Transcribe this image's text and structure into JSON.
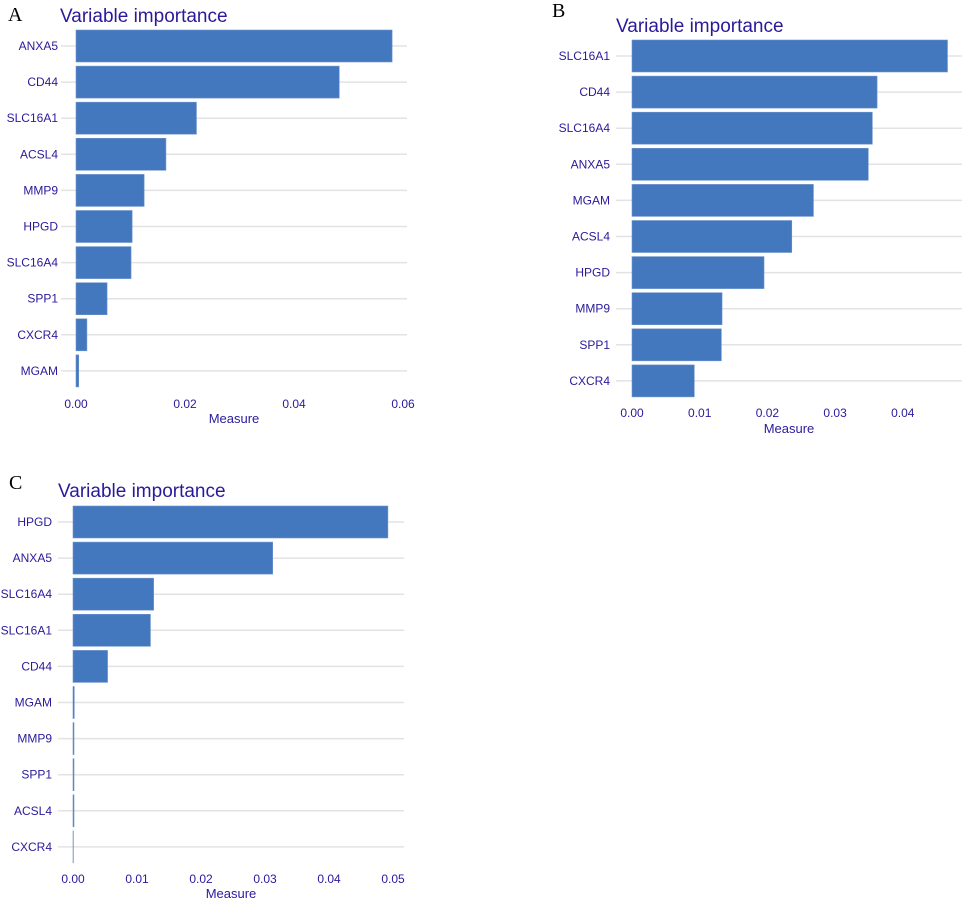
{
  "colors": {
    "bar": "#4377be",
    "text": "#2a1a9a",
    "grid": "#e3e3e3"
  },
  "chart_data": [
    {
      "panel": "A",
      "type": "bar",
      "orientation": "horizontal",
      "title": "Variable importance",
      "xlabel": "Measure",
      "ylabel": "",
      "xlim": [
        0,
        0.06
      ],
      "xticks": [
        "0.00",
        "0.02",
        "0.04",
        "0.06"
      ],
      "grid": true,
      "categories": [
        "ANXA5",
        "CD44",
        "SLC16A1",
        "ACSL4",
        "MMP9",
        "HPGD",
        "SLC16A4",
        "SPP1",
        "CXCR4",
        "MGAM"
      ],
      "values": [
        0.058,
        0.0483,
        0.0221,
        0.0165,
        0.0125,
        0.0103,
        0.0101,
        0.0057,
        0.002,
        0.0005
      ]
    },
    {
      "panel": "B",
      "type": "bar",
      "orientation": "horizontal",
      "title": "Variable importance",
      "xlabel": "Measure",
      "ylabel": "",
      "xlim": [
        0,
        0.0485
      ],
      "xticks": [
        "0.00",
        "0.01",
        "0.02",
        "0.03",
        "0.04"
      ],
      "grid": true,
      "categories": [
        "SLC16A1",
        "CD44",
        "SLC16A4",
        "ANXA5",
        "MGAM",
        "ACSL4",
        "HPGD",
        "MMP9",
        "SPP1",
        "CXCR4"
      ],
      "values": [
        0.0466,
        0.0362,
        0.0355,
        0.0349,
        0.0268,
        0.0236,
        0.0195,
        0.0133,
        0.0132,
        0.0092
      ]
    },
    {
      "panel": "C",
      "type": "bar",
      "orientation": "horizontal",
      "title": "Variable importance",
      "xlabel": "Measure",
      "ylabel": "",
      "xlim": [
        0,
        0.05
      ],
      "xticks": [
        "0.00",
        "0.01",
        "0.02",
        "0.03",
        "0.04",
        "0.05"
      ],
      "grid": true,
      "categories": [
        "HPGD",
        "ANXA5",
        "SLC16A4",
        "SLC16A1",
        "CD44",
        "MGAM",
        "MMP9",
        "SPP1",
        "ACSL4",
        "CXCR4"
      ],
      "values": [
        0.0492,
        0.0312,
        0.0126,
        0.0121,
        0.0054,
        0.0002,
        0.0001,
        0.0001,
        0.0001,
        0.0
      ]
    }
  ]
}
